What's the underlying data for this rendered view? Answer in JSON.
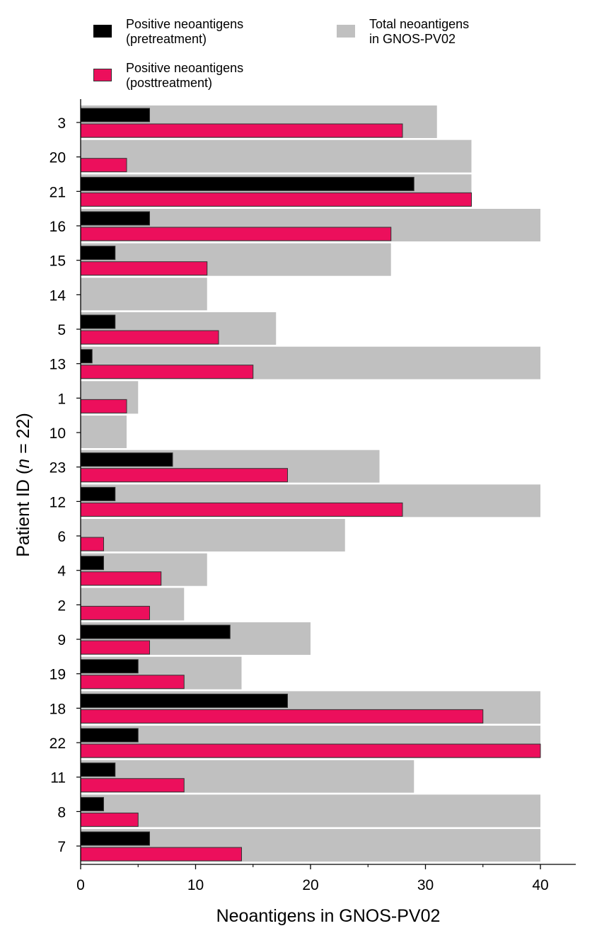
{
  "legend": [
    {
      "key": "pre",
      "lines": [
        "Positive neoantigens",
        "(pretreatment)"
      ]
    },
    {
      "key": "total",
      "lines": [
        "Total neoantigens",
        "in GNOS-PV02"
      ]
    },
    {
      "key": "post",
      "lines": [
        "Positive neoantigens",
        "(posttreatment)"
      ]
    }
  ],
  "colors": {
    "pre": "#000000",
    "post": "#ec0f5c",
    "total": "#c0c0c0",
    "axis": "#000000"
  },
  "chart_data": {
    "type": "bar",
    "orientation": "horizontal",
    "xlabel": "Neoantigens in GNOS-PV02",
    "ylabel_parts": [
      "Patient ID (",
      "n",
      " = 22)"
    ],
    "xlim": [
      0,
      43
    ],
    "xticks": [
      0,
      10,
      20,
      30,
      40
    ],
    "xminor": [
      5,
      15,
      25,
      35
    ],
    "grid": false,
    "legend_position": "top",
    "categories": [
      "3",
      "20",
      "21",
      "16",
      "15",
      "14",
      "5",
      "13",
      "1",
      "10",
      "23",
      "12",
      "6",
      "4",
      "2",
      "9",
      "19",
      "18",
      "22",
      "11",
      "8",
      "7"
    ],
    "series": [
      {
        "name": "Total neoantigens in GNOS-PV02",
        "key": "total",
        "values": [
          31,
          34,
          34,
          40,
          27,
          11,
          17,
          40,
          5,
          4,
          26,
          40,
          23,
          11,
          9,
          20,
          14,
          40,
          40,
          29,
          40,
          40
        ]
      },
      {
        "name": "Positive neoantigens (pretreatment)",
        "key": "pre",
        "values": [
          6,
          0,
          29,
          6,
          3,
          0,
          3,
          1,
          0,
          0,
          8,
          3,
          0,
          2,
          0,
          13,
          5,
          18,
          5,
          3,
          2,
          6
        ]
      },
      {
        "name": "Positive neoantigens (posttreatment)",
        "key": "post",
        "values": [
          28,
          4,
          34,
          27,
          11,
          0,
          12,
          15,
          4,
          0,
          18,
          28,
          2,
          7,
          6,
          6,
          9,
          35,
          40,
          9,
          5,
          14
        ]
      }
    ]
  }
}
